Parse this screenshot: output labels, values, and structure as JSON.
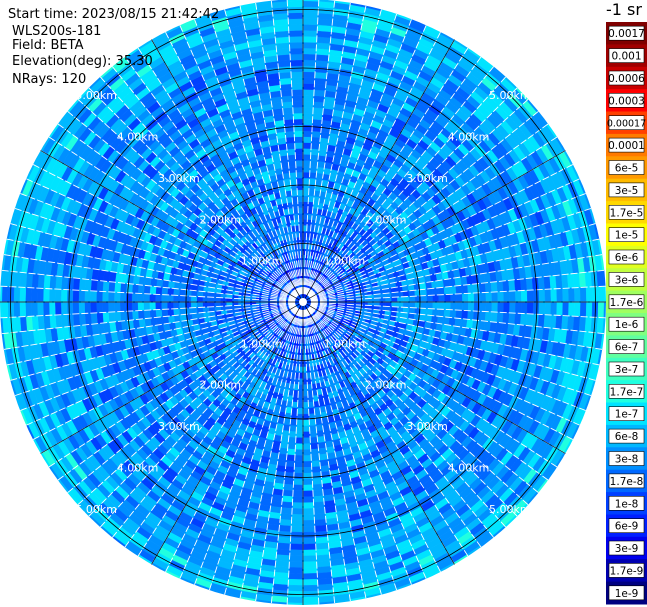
{
  "info": {
    "start_time": "Start time: 2023/08/15 21:42:42",
    "instrument": "WLS200s-181",
    "field": "Field: BETA",
    "elevation": "Elevation(deg): 35.30",
    "nrays": "NRays: 120"
  },
  "colorbar": {
    "unit_label": "-1 sr",
    "labels": [
      "0.0017",
      "0.001",
      "0.0006",
      "0.0003",
      "0.00017",
      "0.0001",
      "6e-5",
      "3e-5",
      "1.7e-5",
      "1e-5",
      "6e-6",
      "3e-6",
      "1.7e-6",
      "1e-6",
      "6e-7",
      "3e-7",
      "1.7e-7",
      "1e-7",
      "6e-8",
      "3e-8",
      "1.7e-8",
      "1e-8",
      "6e-9",
      "3e-9",
      "1.7e-9",
      "1e-9"
    ],
    "colors": [
      "#800000",
      "#a00000",
      "#c80000",
      "#ff0000",
      "#ff4000",
      "#ff7a00",
      "#ff9900",
      "#ffbb00",
      "#ffd800",
      "#ffff00",
      "#e0ff20",
      "#c0ff40",
      "#a0ff60",
      "#80ff80",
      "#60ffa0",
      "#40ffc0",
      "#20ffe0",
      "#00e4ff",
      "#00b8ff",
      "#0090ff",
      "#0068ff",
      "#0040ff",
      "#0020ff",
      "#0000ee",
      "#0000b0",
      "#000080"
    ]
  },
  "chart_data": {
    "type": "ppi-polar-heatmap",
    "field": "BETA",
    "unit": "sr-1",
    "scale": "log",
    "value_range": [
      1e-09,
      0.0017
    ],
    "elevation_deg": 35.3,
    "n_rays": 120,
    "range_rings_km": [
      1,
      2,
      3,
      4,
      5
    ],
    "max_range_km": 5.25,
    "ring_labels": {
      "1": "1.00km",
      "2": "2.00km",
      "3": "3.00km",
      "4": "4.00km",
      "5": "5.00km"
    },
    "azimuth_gridlines_deg": [
      0,
      30,
      60,
      90,
      120,
      150,
      180,
      210,
      240,
      270,
      300,
      330
    ],
    "typical_values_by_range_km": [
      {
        "range_km": 0.2,
        "beta": 1e-08
      },
      {
        "range_km": 0.5,
        "beta": 1e-08
      },
      {
        "range_km": 1.0,
        "beta": 1.7e-08
      },
      {
        "range_km": 2.0,
        "beta": 3e-08
      },
      {
        "range_km": 3.0,
        "beta": 3e-08
      },
      {
        "range_km": 4.0,
        "beta": 3e-08
      },
      {
        "range_km": 5.0,
        "beta": 6e-08
      }
    ]
  }
}
